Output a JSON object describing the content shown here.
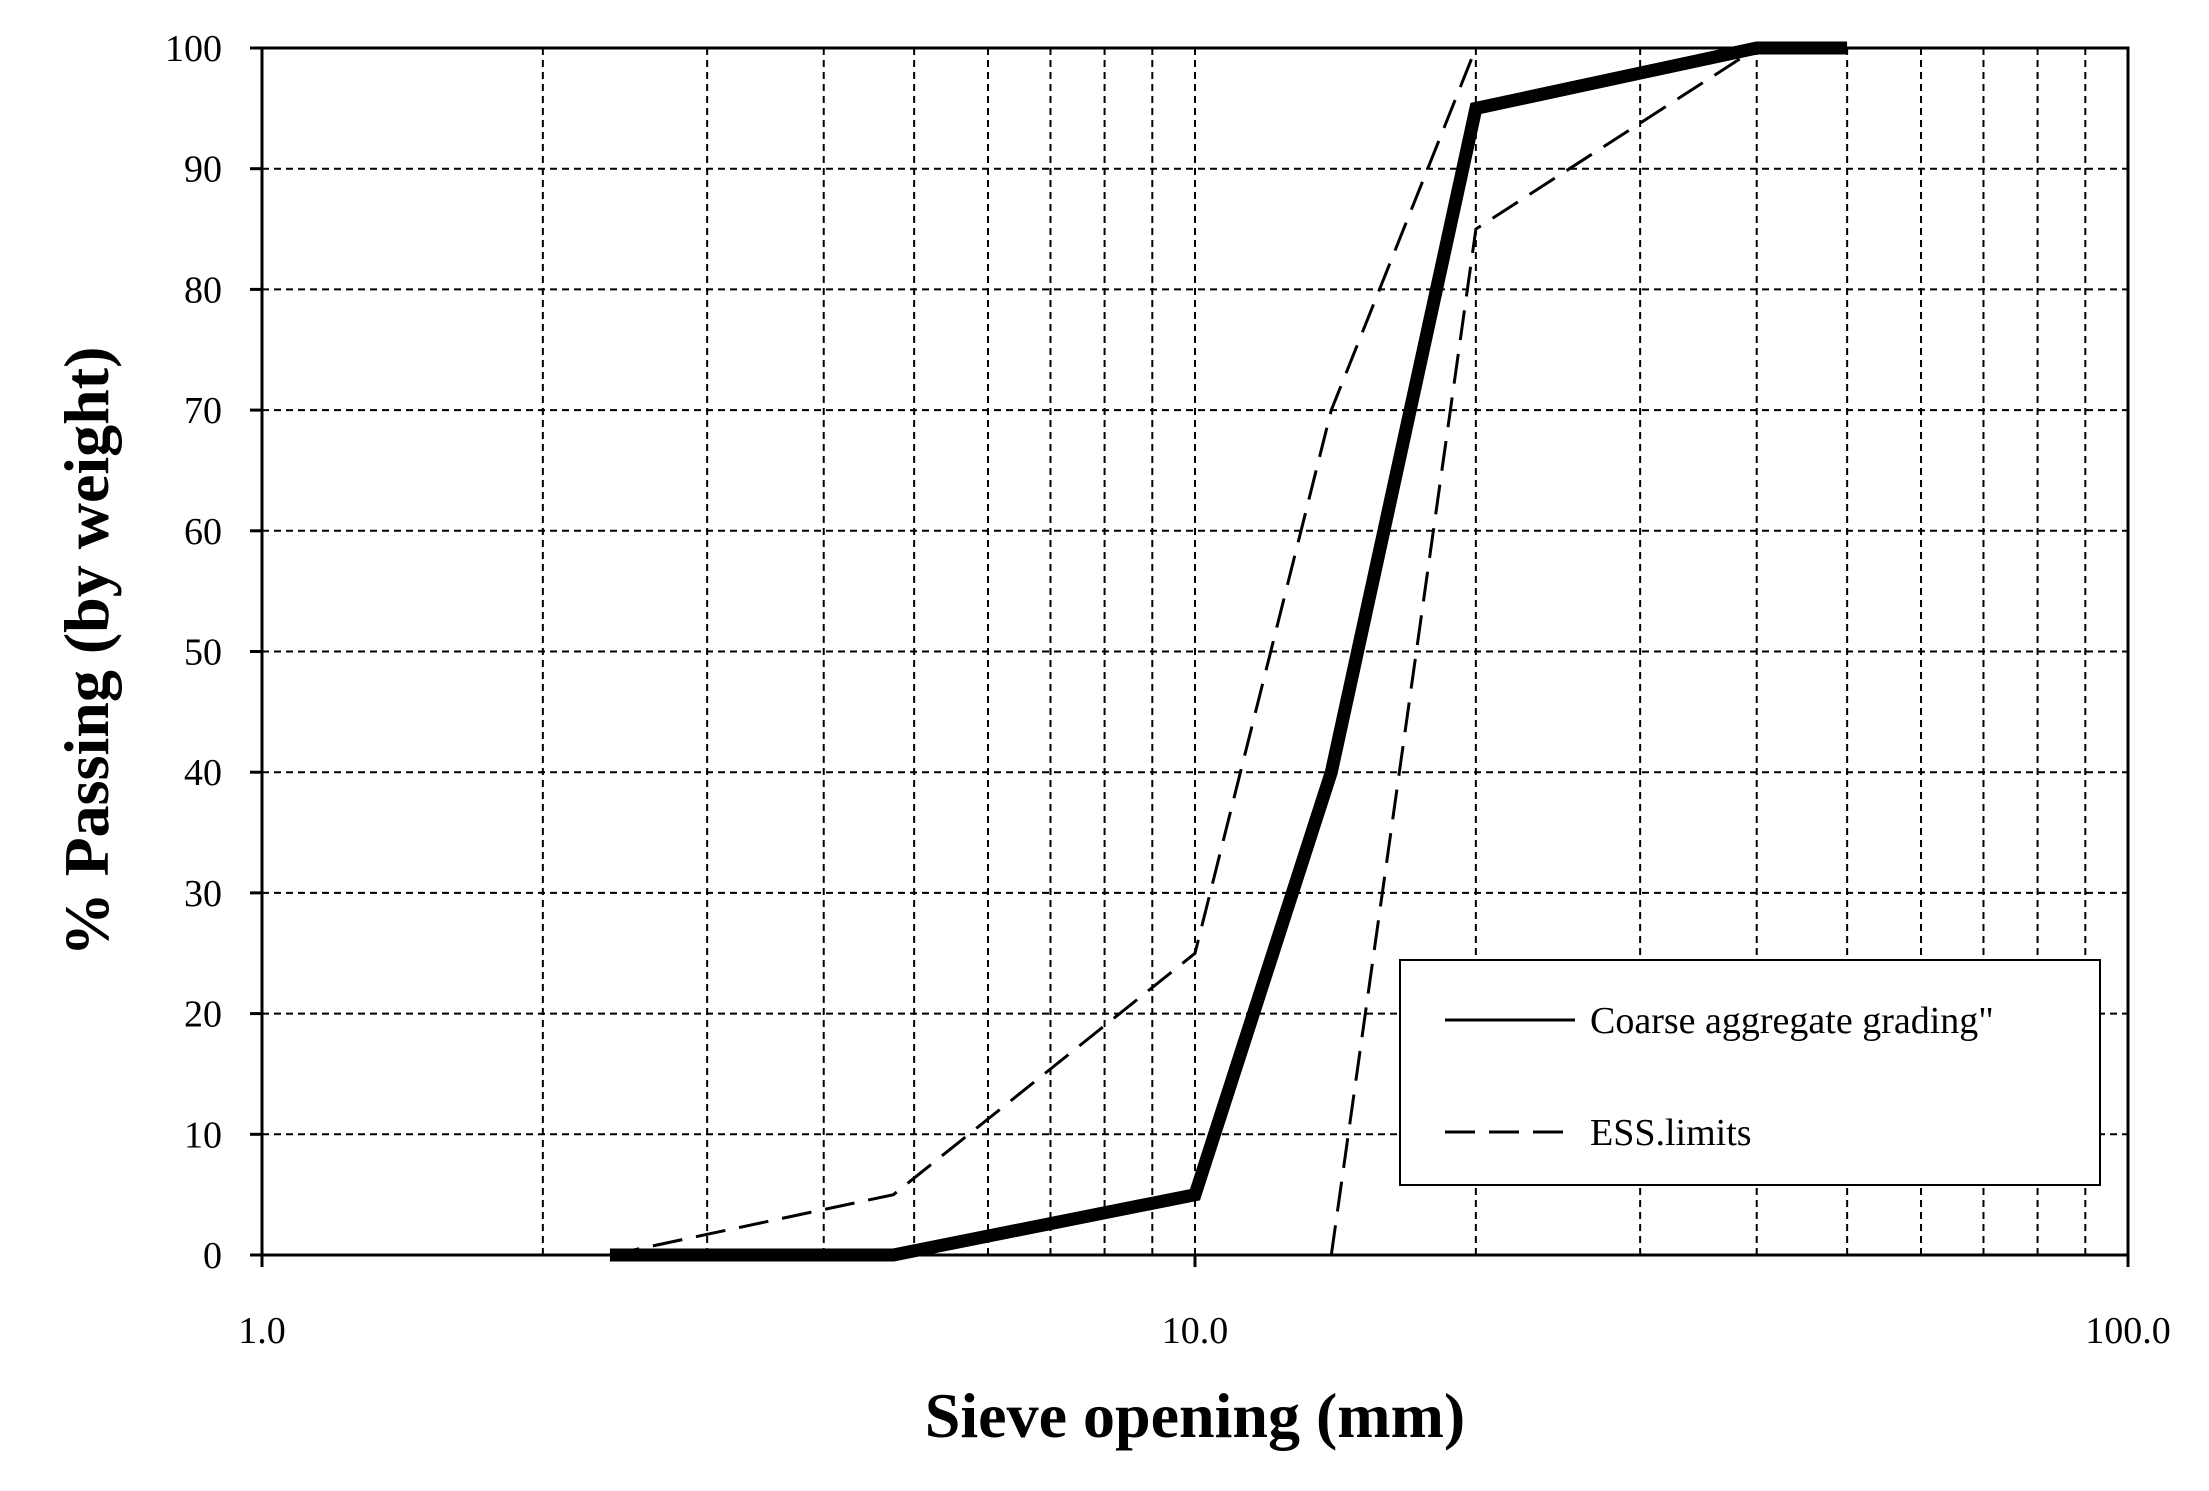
{
  "chart_data": {
    "type": "line",
    "xlabel": "Sieve opening (mm)",
    "ylabel": "% Passing (by weight)",
    "x_scale": "log",
    "xlim": [
      1.0,
      100.0
    ],
    "ylim": [
      0,
      100
    ],
    "x_ticks": [
      "1.0",
      "10.0",
      "100.0"
    ],
    "y_ticks": [
      "0",
      "10",
      "20",
      "30",
      "40",
      "50",
      "60",
      "70",
      "80",
      "90",
      "100"
    ],
    "grid": true,
    "legend_position": "bottom-right",
    "legend": [
      "Coarse aggregate grading\"",
      "ESS.limits"
    ],
    "series": [
      {
        "name": "Coarse aggregate grading\"",
        "style": "solid",
        "x": [
          2.36,
          4.75,
          10,
          14,
          20,
          40,
          50
        ],
        "y": [
          0,
          0,
          5,
          40,
          95,
          100,
          100
        ]
      },
      {
        "name": "ESS.limits",
        "style": "dashed",
        "x": [
          2.36,
          4.75,
          10,
          14,
          20
        ],
        "y": [
          0,
          5,
          25,
          70,
          100
        ]
      },
      {
        "name": "ESS.limits",
        "style": "dashed",
        "x": [
          14,
          20,
          40
        ],
        "y": [
          0,
          85,
          100
        ]
      }
    ],
    "colors": {
      "line": "#000000",
      "grid": "#000000",
      "background": "#ffffff"
    }
  }
}
